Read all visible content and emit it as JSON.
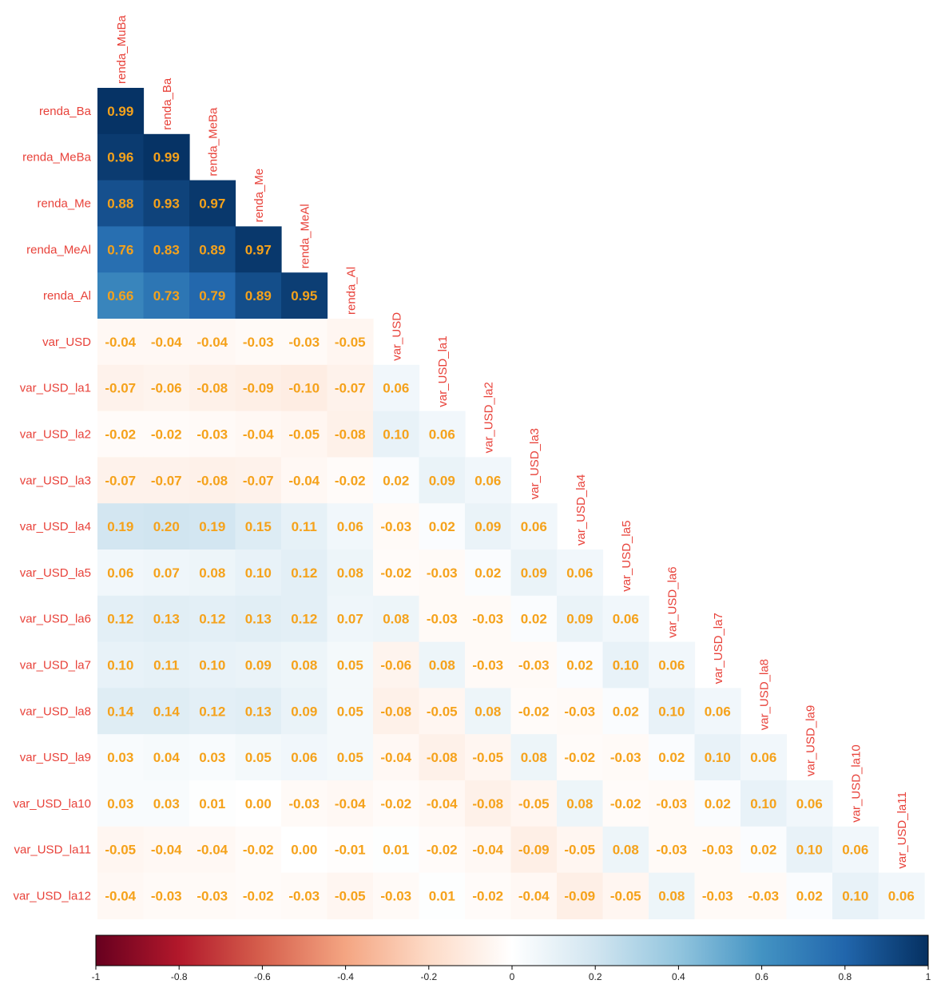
{
  "chart_data": {
    "type": "heatmap",
    "layout": "lower-triangular correlation matrix",
    "variables": [
      "renda_MuBa",
      "renda_Ba",
      "renda_MeBa",
      "renda_Me",
      "renda_MeAl",
      "renda_Al",
      "var_USD",
      "var_USD_la1",
      "var_USD_la2",
      "var_USD_la3",
      "var_USD_la4",
      "var_USD_la5",
      "var_USD_la6",
      "var_USD_la7",
      "var_USD_la8",
      "var_USD_la9",
      "var_USD_la10",
      "var_USD_la11",
      "var_USD_la12"
    ],
    "matrix": [
      [
        "0.99"
      ],
      [
        "0.96",
        "0.99"
      ],
      [
        "0.88",
        "0.93",
        "0.97"
      ],
      [
        "0.76",
        "0.83",
        "0.89",
        "0.97"
      ],
      [
        "0.66",
        "0.73",
        "0.79",
        "0.89",
        "0.95"
      ],
      [
        "-0.04",
        "-0.04",
        "-0.04",
        "-0.03",
        "-0.03",
        "-0.05"
      ],
      [
        "-0.07",
        "-0.06",
        "-0.08",
        "-0.09",
        "-0.10",
        "-0.07",
        "0.06"
      ],
      [
        "-0.02",
        "-0.02",
        "-0.03",
        "-0.04",
        "-0.05",
        "-0.08",
        "0.10",
        "0.06"
      ],
      [
        "-0.07",
        "-0.07",
        "-0.08",
        "-0.07",
        "-0.04",
        "-0.02",
        "0.02",
        "0.09",
        "0.06"
      ],
      [
        "0.19",
        "0.20",
        "0.19",
        "0.15",
        "0.11",
        "0.06",
        "-0.03",
        "0.02",
        "0.09",
        "0.06"
      ],
      [
        "0.06",
        "0.07",
        "0.08",
        "0.10",
        "0.12",
        "0.08",
        "-0.02",
        "-0.03",
        "0.02",
        "0.09",
        "0.06"
      ],
      [
        "0.12",
        "0.13",
        "0.12",
        "0.13",
        "0.12",
        "0.07",
        "0.08",
        "-0.03",
        "-0.03",
        "0.02",
        "0.09",
        "0.06"
      ],
      [
        "0.10",
        "0.11",
        "0.10",
        "0.09",
        "0.08",
        "0.05",
        "-0.06",
        "0.08",
        "-0.03",
        "-0.03",
        "0.02",
        "0.10",
        "0.06"
      ],
      [
        "0.14",
        "0.14",
        "0.12",
        "0.13",
        "0.09",
        "0.05",
        "-0.08",
        "-0.05",
        "0.08",
        "-0.02",
        "-0.03",
        "0.02",
        "0.10",
        "0.06"
      ],
      [
        "0.03",
        "0.04",
        "0.03",
        "0.05",
        "0.06",
        "0.05",
        "-0.04",
        "-0.08",
        "-0.05",
        "0.08",
        "-0.02",
        "-0.03",
        "0.02",
        "0.10",
        "0.06"
      ],
      [
        "0.03",
        "0.03",
        "0.01",
        "0.00",
        "-0.03",
        "-0.04",
        "-0.02",
        "-0.04",
        "-0.08",
        "-0.05",
        "0.08",
        "-0.02",
        "-0.03",
        "0.02",
        "0.10",
        "0.06"
      ],
      [
        "-0.05",
        "-0.04",
        "-0.04",
        "-0.02",
        "0.00",
        "-0.01",
        "0.01",
        "-0.02",
        "-0.04",
        "-0.09",
        "-0.05",
        "0.08",
        "-0.03",
        "-0.03",
        "0.02",
        "0.10",
        "0.06"
      ],
      [
        "-0.04",
        "-0.03",
        "-0.03",
        "-0.02",
        "-0.03",
        "-0.05",
        "-0.03",
        "0.01",
        "-0.02",
        "-0.04",
        "-0.09",
        "-0.05",
        "0.08",
        "-0.03",
        "-0.03",
        "0.02",
        "0.10",
        "0.06"
      ]
    ],
    "colorbar": {
      "range": [
        -1,
        1
      ],
      "ticks": [
        "-1",
        "-0.8",
        "-0.6",
        "-0.4",
        "-0.2",
        "0",
        "0.2",
        "0.4",
        "0.6",
        "0.8",
        "1"
      ],
      "palette": "RdBu",
      "colors": [
        "#67001f",
        "#b2182b",
        "#d6604d",
        "#f4a582",
        "#fddbc7",
        "#ffffff",
        "#d1e5f0",
        "#92c5de",
        "#4393c3",
        "#2166ac",
        "#053061"
      ]
    },
    "label_color": "#e8423a",
    "value_color": "#f5a21b",
    "grid": false
  }
}
